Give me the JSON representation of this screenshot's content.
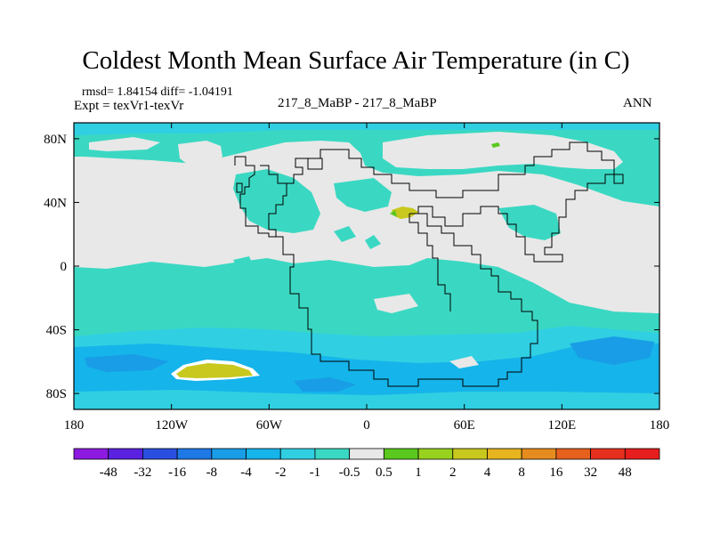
{
  "chart_data": {
    "type": "heatmap",
    "title": "Coldest Month Mean Surface Air Temperature (in C)",
    "stats": "rmsd= 1.84154 diff= -1.04191",
    "experiment": "Expt = texVr1-texVr",
    "case_label": "217_8_MaBP - 217_8_MaBP",
    "season": "ANN",
    "x_axis": {
      "range": [
        -180,
        180
      ],
      "tick_values": [
        -180,
        -120,
        -60,
        0,
        60,
        120,
        180
      ],
      "tick_labels": [
        "180",
        "120W",
        "60W",
        "0",
        "60E",
        "120E",
        "180"
      ]
    },
    "y_axis": {
      "range": [
        -90,
        90
      ],
      "tick_values": [
        80,
        40,
        0,
        -40,
        -80
      ],
      "tick_labels": [
        "80N",
        "40N",
        "0",
        "40S",
        "80S"
      ]
    },
    "colorbar": {
      "labels": [
        "-48",
        "-32",
        "-16",
        "-8",
        "-4",
        "-2",
        "-1",
        "-0.5",
        "0.5",
        "1",
        "2",
        "4",
        "8",
        "16",
        "32",
        "48"
      ],
      "colors": [
        "#8c1ae0",
        "#5a22e0",
        "#2a4fe0",
        "#1e78e6",
        "#189de6",
        "#15b4ea",
        "#30cfe2",
        "#3ad8c2",
        "#e8e8e8",
        "#5ac81e",
        "#98d21e",
        "#c8c81e",
        "#e6b41e",
        "#e68c1e",
        "#e6601e",
        "#e6301e",
        "#e61e1e"
      ]
    },
    "colors": {
      "background_field": "#e8e8e8",
      "coast": "#000000"
    }
  }
}
